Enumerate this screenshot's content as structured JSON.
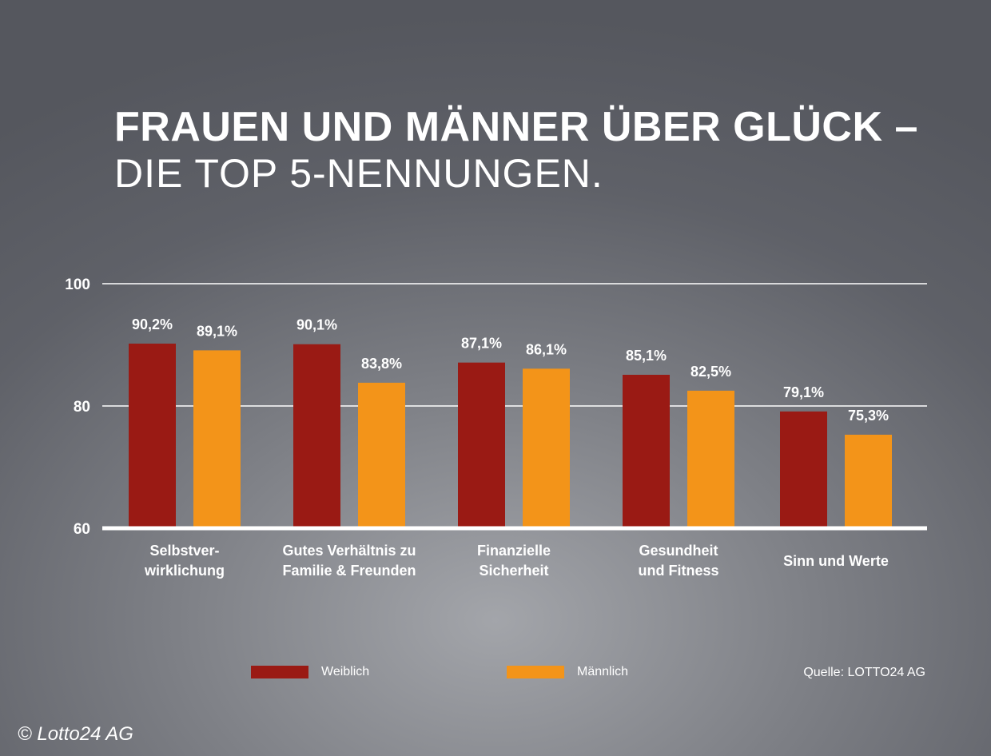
{
  "chart_data": {
    "type": "bar",
    "title": "FRAUEN UND MÄNNER ÜBER GLÜCK –",
    "subtitle": "DIE TOP 5-NENNUNGEN.",
    "categories": [
      "Selbstver-\nwirklichung",
      "Gutes Verhältnis zu\nFamilie & Freunden",
      "Finanzielle\nSicherheit",
      "Gesundheit\nund Fitness",
      "Sinn und Werte"
    ],
    "series": [
      {
        "name": "Weiblich",
        "color": "#9a1a14",
        "values": [
          90.2,
          90.1,
          87.1,
          85.1,
          79.1
        ],
        "labels": [
          "90,2%",
          "90,1%",
          "87,1%",
          "85,1%",
          "79,1%"
        ]
      },
      {
        "name": "Männlich",
        "color": "#f39419",
        "values": [
          89.1,
          83.8,
          86.1,
          82.5,
          75.3
        ],
        "labels": [
          "89,1%",
          "83,8%",
          "86,1%",
          "82,5%",
          "75,3%"
        ]
      }
    ],
    "ylim": [
      60,
      100
    ],
    "yticks": [
      "100",
      "80",
      "60"
    ],
    "ytick_values": [
      100,
      80,
      60
    ],
    "grid": true,
    "legend_position": "bottom"
  },
  "source": "Quelle: LOTTO24 AG",
  "copyright": "© Lotto24 AG"
}
